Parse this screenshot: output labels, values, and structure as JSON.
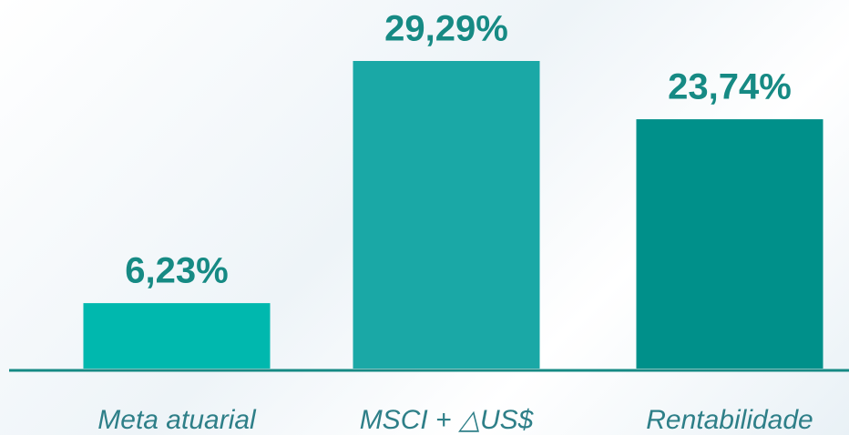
{
  "chart_data": {
    "type": "bar",
    "categories": [
      "Meta atuarial",
      "MSCI + △US$",
      "Rentabilidade"
    ],
    "values": [
      6.23,
      29.29,
      23.74
    ],
    "value_labels": [
      "6,23%",
      "29,29%",
      "23,74%"
    ],
    "colors": [
      "#00b8ae",
      "#1aa8a6",
      "#00908a"
    ]
  }
}
